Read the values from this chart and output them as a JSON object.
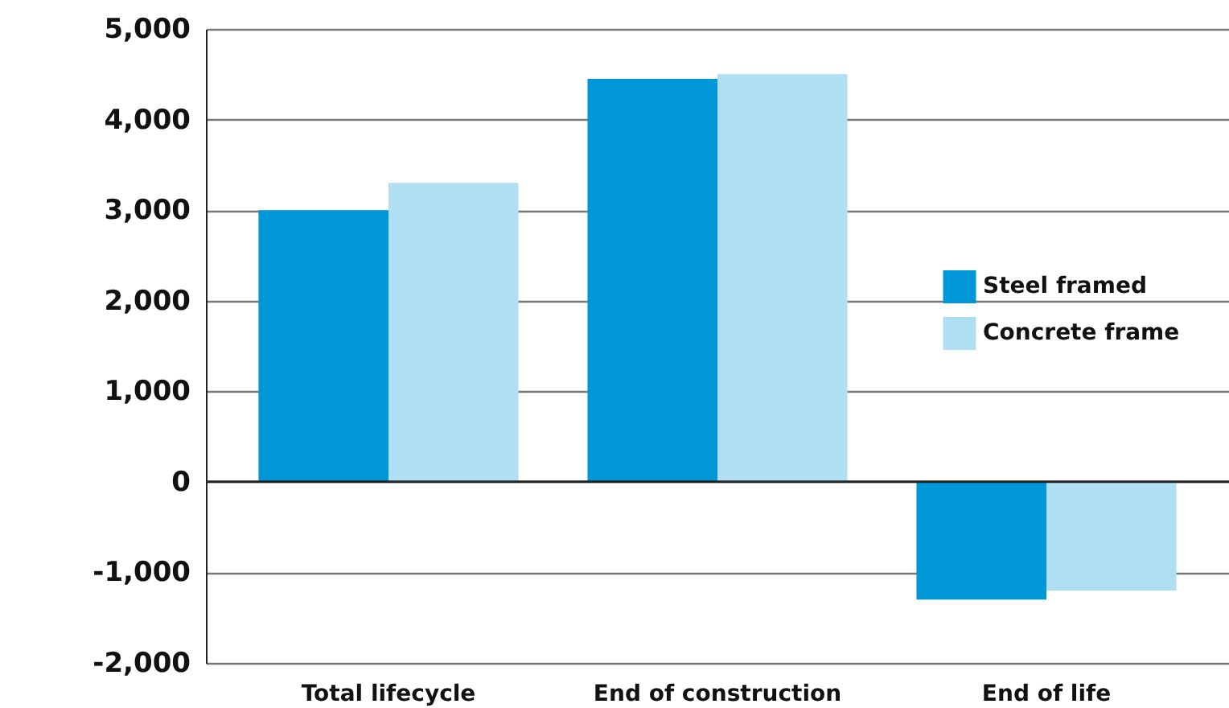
{
  "chart_data": {
    "type": "bar",
    "categories": [
      "Total lifecycle",
      "End of construction",
      "End of life"
    ],
    "series": [
      {
        "name": "Steel framed",
        "color": "#0097d9",
        "values": [
          3000,
          4450,
          -1300
        ]
      },
      {
        "name": "Concrete frame",
        "color": "#b0def3",
        "values": [
          3300,
          4500,
          -1200
        ]
      }
    ],
    "ylim": [
      -2000,
      5000
    ],
    "yticks": [
      {
        "value": -2000,
        "label": "-2,000"
      },
      {
        "value": -1000,
        "label": "-1,000"
      },
      0,
      {
        "value": 1000,
        "label": "1,000"
      },
      {
        "value": 2000,
        "label": "2,000"
      },
      {
        "value": 3000,
        "label": "3,000"
      },
      {
        "value": 4000,
        "label": "4,000"
      },
      {
        "value": 5000,
        "label": "5,000"
      }
    ],
    "grid": "y",
    "legend": "right"
  }
}
